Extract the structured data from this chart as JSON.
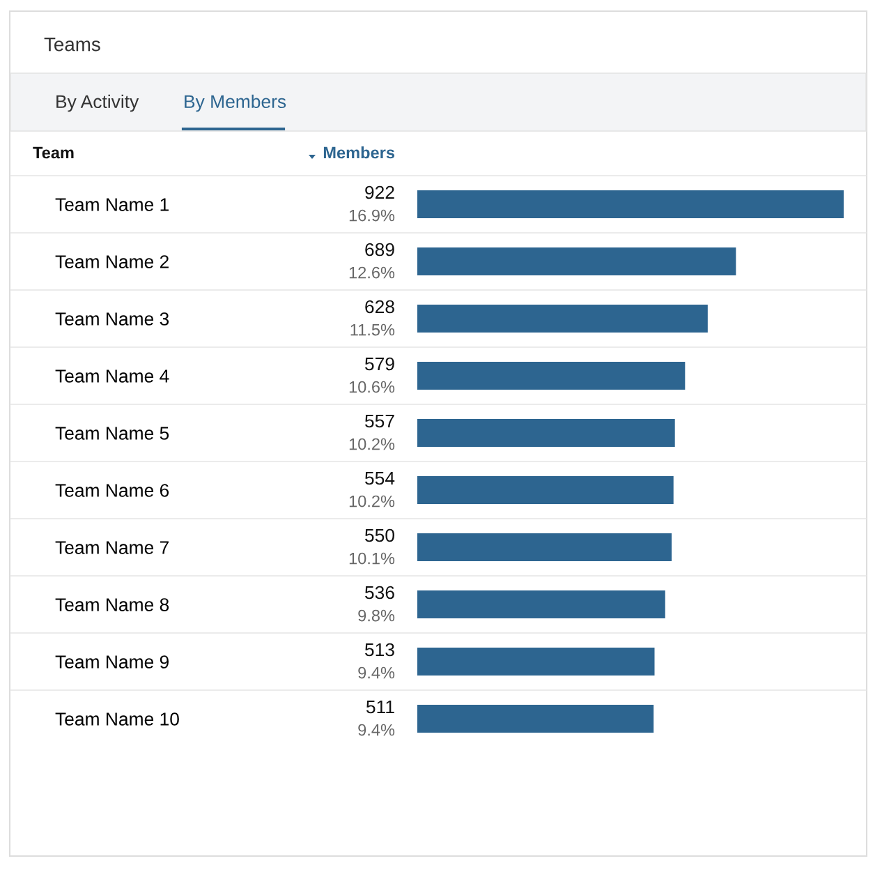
{
  "chart_data": {
    "type": "bar",
    "orientation": "horizontal",
    "title": "Teams",
    "annotations": [
      "By Activity",
      "By Members",
      "Team",
      "Members"
    ],
    "categories": [
      "Team Name 1",
      "Team Name 2",
      "Team Name 3",
      "Team Name 4",
      "Team Name 5",
      "Team Name 6",
      "Team Name 7",
      "Team Name 8",
      "Team Name 9",
      "Team Name 10"
    ],
    "values": [
      922,
      689,
      628,
      579,
      557,
      554,
      550,
      536,
      513,
      511
    ],
    "value_labels": [
      "922\n16.9%",
      "689\n12.6%",
      "628\n11.5%",
      "579\n10.6%",
      "557\n10.2%",
      "554\n10.2%",
      "550\n10.1%",
      "536\n9.8%",
      "513\n9.4%",
      "511\n9.4%"
    ],
    "color": "#2d6590",
    "xlim": [
      0,
      922
    ],
    "grid": false,
    "legend": false
  }
}
